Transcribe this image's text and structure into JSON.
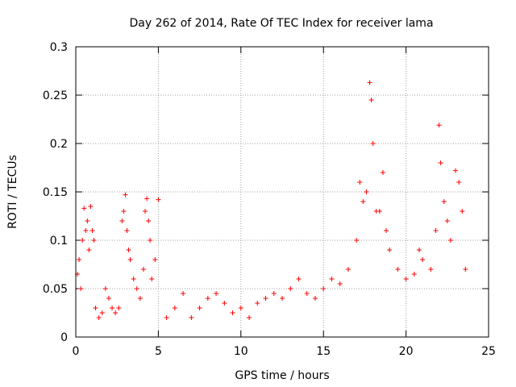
{
  "chart_data": {
    "type": "scatter",
    "title": "Day 262 of 2014, Rate Of TEC Index for receiver lama",
    "xlabel": "GPS time / hours",
    "ylabel": "ROTI / TECUs",
    "xlim": [
      0,
      25
    ],
    "ylim": [
      0,
      0.3
    ],
    "xticks": [
      0,
      5,
      10,
      15,
      20,
      25
    ],
    "yticks": [
      0,
      0.05,
      0.1,
      0.15,
      0.2,
      0.25,
      0.3
    ],
    "xtick_labels": [
      "0",
      "5",
      "10",
      "15",
      "20",
      "25"
    ],
    "ytick_labels": [
      "0",
      "0.05",
      "0.1",
      "0.15",
      "0.2",
      "0.25",
      "0.3"
    ],
    "grid": true,
    "marker": "+",
    "color": "#ff0000",
    "series": [
      {
        "x": [
          0.1,
          0.2,
          0.3,
          0.4,
          0.5,
          0.6,
          0.7,
          0.8,
          0.9,
          1.0,
          1.1,
          1.2,
          1.4,
          1.6,
          1.8,
          2.0,
          2.2,
          2.4,
          2.6,
          2.8,
          2.9,
          3.0,
          3.1,
          3.2,
          3.3,
          3.5,
          3.7,
          3.9,
          4.1,
          4.2,
          4.3,
          4.4,
          4.5,
          4.6,
          4.8,
          5.0,
          5.5,
          6.0,
          6.5,
          7.0,
          7.5,
          8.0,
          8.5,
          9.0,
          9.5,
          10.0,
          10.5,
          11.0,
          11.5,
          12.0,
          12.5,
          13.0,
          13.5,
          14.0,
          14.5,
          15.0,
          15.5,
          16.0,
          16.5,
          17.0,
          17.2,
          17.4,
          17.6,
          17.8,
          17.9,
          18.0,
          18.2,
          18.4,
          18.6,
          18.8,
          19.0,
          19.5,
          20.0,
          20.5,
          20.8,
          21.0,
          21.5,
          21.8,
          22.0,
          22.1,
          22.3,
          22.5,
          22.7,
          23.0,
          23.2,
          23.4,
          23.6
        ],
        "y": [
          0.065,
          0.08,
          0.05,
          0.1,
          0.133,
          0.11,
          0.12,
          0.09,
          0.135,
          0.11,
          0.1,
          0.03,
          0.02,
          0.025,
          0.05,
          0.04,
          0.03,
          0.025,
          0.03,
          0.12,
          0.13,
          0.147,
          0.11,
          0.09,
          0.08,
          0.06,
          0.05,
          0.04,
          0.07,
          0.13,
          0.143,
          0.12,
          0.1,
          0.06,
          0.08,
          0.142,
          0.02,
          0.03,
          0.045,
          0.02,
          0.03,
          0.04,
          0.045,
          0.035,
          0.025,
          0.03,
          0.02,
          0.035,
          0.04,
          0.045,
          0.04,
          0.05,
          0.06,
          0.045,
          0.04,
          0.05,
          0.06,
          0.055,
          0.07,
          0.1,
          0.16,
          0.14,
          0.15,
          0.263,
          0.245,
          0.2,
          0.13,
          0.13,
          0.17,
          0.11,
          0.09,
          0.07,
          0.06,
          0.065,
          0.09,
          0.08,
          0.07,
          0.11,
          0.219,
          0.18,
          0.14,
          0.12,
          0.1,
          0.172,
          0.16,
          0.13,
          0.07
        ]
      }
    ]
  }
}
